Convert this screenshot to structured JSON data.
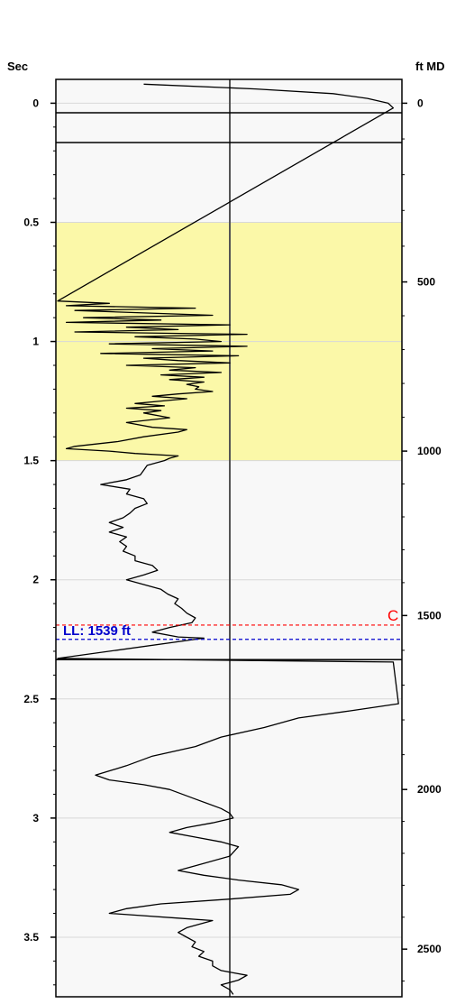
{
  "chart_data": {
    "type": "line",
    "left_axis": {
      "label": "Sec",
      "range": [
        -0.1,
        3.75
      ],
      "ticks": [
        0,
        0.5,
        1,
        1.5,
        2,
        2.5,
        3,
        3.5
      ],
      "tick_labels": [
        "0",
        "0.5",
        "1",
        "1.5",
        "2",
        "2.5",
        "3",
        "3.5"
      ]
    },
    "right_axis": {
      "label": "ft MD",
      "ticks": [
        0,
        500,
        1000,
        1500,
        2000,
        2500
      ],
      "tick_labels": [
        "0",
        "500",
        "1000",
        "1500",
        "2000",
        "2500"
      ]
    },
    "depth_time_pairs": [
      [
        0,
        0
      ],
      [
        500,
        0.75
      ],
      [
        1000,
        1.46
      ],
      [
        1500,
        2.15
      ],
      [
        2000,
        2.88
      ],
      [
        2500,
        3.55
      ]
    ],
    "highlight_band": {
      "top_sec": 0.5,
      "bottom_sec": 1.5,
      "color": "#fbf8a8"
    },
    "grid": true,
    "horizontal_lines": [
      {
        "sec": 0.04,
        "color": "#000000",
        "style": "solid"
      },
      {
        "sec": 0.165,
        "color": "#000000",
        "style": "solid"
      },
      {
        "sec": 2.335,
        "color": "#000000",
        "style": "solid"
      }
    ],
    "markers": [
      {
        "sec": 2.19,
        "label": "C",
        "color": "#ff0000",
        "style": "dashed"
      },
      {
        "sec": 2.25,
        "label": "LL: 1539 ft",
        "color": "#0000cc",
        "style": "dashed"
      }
    ],
    "center_line_value": 0,
    "series": [
      {
        "color": "#000000",
        "points": [
          [
            -0.08,
            -0.5
          ],
          [
            -0.06,
            0.15
          ],
          [
            -0.04,
            0.6
          ],
          [
            -0.02,
            0.8
          ],
          [
            0.0,
            0.92
          ],
          [
            0.02,
            0.95
          ],
          [
            0.83,
            -1.0
          ],
          [
            0.84,
            -0.7
          ],
          [
            0.85,
            -0.95
          ],
          [
            0.86,
            -0.2
          ],
          [
            0.87,
            -0.9
          ],
          [
            0.88,
            -0.5
          ],
          [
            0.89,
            -0.1
          ],
          [
            0.9,
            -0.85
          ],
          [
            0.91,
            -0.4
          ],
          [
            0.92,
            -0.95
          ],
          [
            0.93,
            0.0
          ],
          [
            0.94,
            -0.6
          ],
          [
            0.95,
            -0.3
          ],
          [
            0.96,
            -0.9
          ],
          [
            0.97,
            0.1
          ],
          [
            0.98,
            -0.55
          ],
          [
            0.99,
            -0.2
          ],
          [
            1.0,
            -0.05
          ],
          [
            1.01,
            -0.7
          ],
          [
            1.02,
            0.1
          ],
          [
            1.03,
            -0.45
          ],
          [
            1.04,
            -0.1
          ],
          [
            1.05,
            -0.75
          ],
          [
            1.06,
            0.05
          ],
          [
            1.07,
            -0.5
          ],
          [
            1.08,
            -0.3
          ],
          [
            1.09,
            0.0
          ],
          [
            1.1,
            -0.6
          ],
          [
            1.11,
            -0.2
          ],
          [
            1.12,
            -0.35
          ],
          [
            1.13,
            -0.05
          ],
          [
            1.14,
            -0.4
          ],
          [
            1.15,
            -0.15
          ],
          [
            1.16,
            -0.35
          ],
          [
            1.17,
            -0.15
          ],
          [
            1.18,
            -0.25
          ],
          [
            1.19,
            -0.18
          ],
          [
            1.2,
            -0.2
          ],
          [
            1.21,
            -0.1
          ],
          [
            1.22,
            -0.3
          ],
          [
            1.23,
            -0.45
          ],
          [
            1.24,
            -0.25
          ],
          [
            1.25,
            -0.4
          ],
          [
            1.26,
            -0.55
          ],
          [
            1.27,
            -0.38
          ],
          [
            1.28,
            -0.6
          ],
          [
            1.29,
            -0.4
          ],
          [
            1.3,
            -0.5
          ],
          [
            1.32,
            -0.35
          ],
          [
            1.34,
            -0.6
          ],
          [
            1.36,
            -0.45
          ],
          [
            1.37,
            -0.25
          ],
          [
            1.38,
            -0.3
          ],
          [
            1.4,
            -0.5
          ],
          [
            1.42,
            -0.65
          ],
          [
            1.44,
            -0.9
          ],
          [
            1.45,
            -0.95
          ],
          [
            1.46,
            -0.7
          ],
          [
            1.47,
            -0.55
          ],
          [
            1.48,
            -0.3
          ],
          [
            1.49,
            -0.35
          ],
          [
            1.5,
            -0.38
          ],
          [
            1.52,
            -0.48
          ],
          [
            1.54,
            -0.5
          ],
          [
            1.56,
            -0.52
          ],
          [
            1.58,
            -0.6
          ],
          [
            1.6,
            -0.75
          ],
          [
            1.62,
            -0.58
          ],
          [
            1.64,
            -0.6
          ],
          [
            1.66,
            -0.5
          ],
          [
            1.68,
            -0.48
          ],
          [
            1.7,
            -0.55
          ],
          [
            1.72,
            -0.58
          ],
          [
            1.74,
            -0.62
          ],
          [
            1.76,
            -0.7
          ],
          [
            1.78,
            -0.62
          ],
          [
            1.8,
            -0.7
          ],
          [
            1.82,
            -0.6
          ],
          [
            1.84,
            -0.64
          ],
          [
            1.86,
            -0.6
          ],
          [
            1.88,
            -0.62
          ],
          [
            1.9,
            -0.55
          ],
          [
            1.92,
            -0.55
          ],
          [
            1.94,
            -0.45
          ],
          [
            1.96,
            -0.42
          ],
          [
            1.98,
            -0.5
          ],
          [
            2.0,
            -0.6
          ],
          [
            2.02,
            -0.5
          ],
          [
            2.04,
            -0.4
          ],
          [
            2.06,
            -0.36
          ],
          [
            2.08,
            -0.3
          ],
          [
            2.1,
            -0.32
          ],
          [
            2.12,
            -0.28
          ],
          [
            2.14,
            -0.25
          ],
          [
            2.16,
            -0.2
          ],
          [
            2.18,
            -0.22
          ],
          [
            2.2,
            -0.35
          ],
          [
            2.22,
            -0.45
          ],
          [
            2.24,
            -0.3
          ],
          [
            2.245,
            -0.15
          ],
          [
            2.33,
            -1.0
          ],
          [
            2.345,
            0.95
          ],
          [
            2.52,
            0.98
          ],
          [
            2.55,
            0.7
          ],
          [
            2.58,
            0.4
          ],
          [
            2.62,
            0.2
          ],
          [
            2.66,
            -0.05
          ],
          [
            2.7,
            -0.2
          ],
          [
            2.74,
            -0.45
          ],
          [
            2.78,
            -0.6
          ],
          [
            2.82,
            -0.78
          ],
          [
            2.84,
            -0.7
          ],
          [
            2.86,
            -0.5
          ],
          [
            2.88,
            -0.35
          ],
          [
            2.92,
            -0.2
          ],
          [
            2.96,
            -0.05
          ],
          [
            2.98,
            0.0
          ],
          [
            3.0,
            0.02
          ],
          [
            3.02,
            -0.1
          ],
          [
            3.04,
            -0.25
          ],
          [
            3.06,
            -0.35
          ],
          [
            3.08,
            -0.2
          ],
          [
            3.1,
            -0.05
          ],
          [
            3.12,
            0.05
          ],
          [
            3.16,
            0.0
          ],
          [
            3.2,
            -0.2
          ],
          [
            3.22,
            -0.3
          ],
          [
            3.24,
            -0.15
          ],
          [
            3.26,
            0.05
          ],
          [
            3.28,
            0.3
          ],
          [
            3.3,
            0.4
          ],
          [
            3.32,
            0.35
          ],
          [
            3.34,
            0.0
          ],
          [
            3.36,
            -0.4
          ],
          [
            3.38,
            -0.6
          ],
          [
            3.4,
            -0.7
          ],
          [
            3.42,
            -0.3
          ],
          [
            3.43,
            -0.1
          ],
          [
            3.44,
            -0.15
          ],
          [
            3.46,
            -0.25
          ],
          [
            3.48,
            -0.3
          ],
          [
            3.5,
            -0.25
          ],
          [
            3.52,
            -0.2
          ],
          [
            3.54,
            -0.22
          ],
          [
            3.56,
            -0.15
          ],
          [
            3.58,
            -0.18
          ],
          [
            3.6,
            -0.1
          ],
          [
            3.62,
            -0.1
          ],
          [
            3.64,
            -0.05
          ],
          [
            3.66,
            0.1
          ],
          [
            3.68,
            0.05
          ],
          [
            3.7,
            -0.05
          ],
          [
            3.72,
            0.0
          ],
          [
            3.74,
            0.02
          ]
        ]
      }
    ]
  }
}
